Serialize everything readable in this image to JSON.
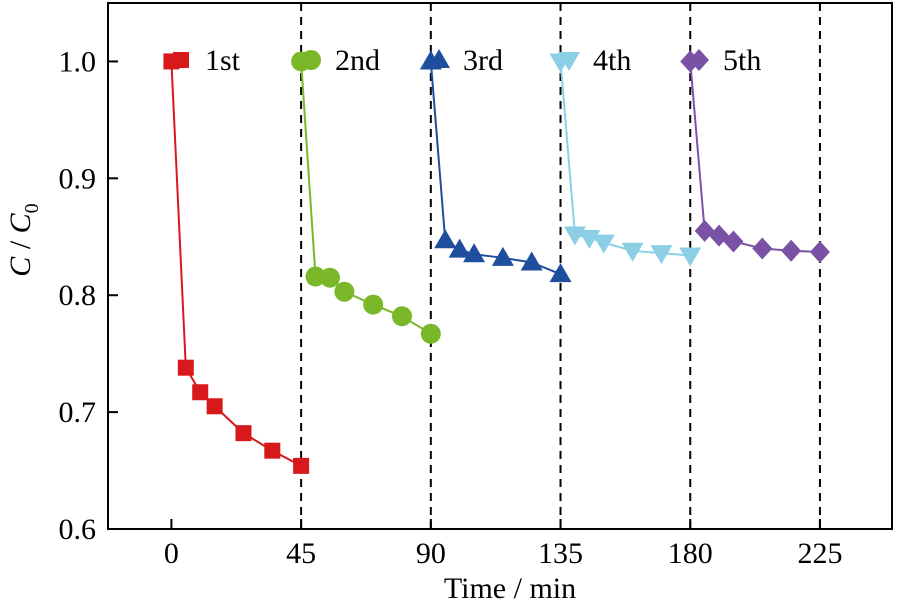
{
  "chart_data": {
    "type": "line",
    "xlabel": "Time / min",
    "ylabel_main": "C",
    "ylabel_sep": " / ",
    "ylabel_denom": "C",
    "ylabel_sub": "0",
    "xlim": [
      -22,
      250
    ],
    "ylim": [
      0.6,
      1.05
    ],
    "xticks": [
      0,
      45,
      90,
      135,
      180,
      225
    ],
    "yticks": [
      0.6,
      0.7,
      0.8,
      0.9,
      1.0
    ],
    "ytick_labels": [
      "0.6",
      "0.7",
      "0.8",
      "0.9",
      "1.0"
    ],
    "vlines": [
      45,
      90,
      135,
      180,
      225
    ],
    "legend_position": "top, inside plot, horizontal",
    "series": [
      {
        "name": "1st",
        "color": "#d7191c",
        "marker": "square",
        "x": [
          0,
          5,
          10,
          15,
          25,
          35,
          45
        ],
        "y": [
          1.0,
          0.738,
          0.717,
          0.705,
          0.682,
          0.667,
          0.654
        ]
      },
      {
        "name": "2nd",
        "color": "#7ab829",
        "marker": "circle",
        "x": [
          45,
          50,
          55,
          60,
          70,
          80,
          90
        ],
        "y": [
          1.0,
          0.816,
          0.815,
          0.803,
          0.792,
          0.782,
          0.767
        ]
      },
      {
        "name": "3rd",
        "color": "#1f4e9e",
        "marker": "triangle-up",
        "x": [
          90,
          95,
          100,
          105,
          115,
          125,
          135
        ],
        "y": [
          1.0,
          0.847,
          0.839,
          0.835,
          0.832,
          0.828,
          0.818
        ]
      },
      {
        "name": "4th",
        "color": "#8ccfe5",
        "marker": "triangle-down",
        "x": [
          135,
          140,
          145,
          150,
          160,
          170,
          180
        ],
        "y": [
          1.0,
          0.852,
          0.849,
          0.845,
          0.838,
          0.836,
          0.834
        ]
      },
      {
        "name": "5th",
        "color": "#7a52a5",
        "marker": "diamond",
        "x": [
          180,
          185,
          190,
          195,
          205,
          215,
          225
        ],
        "y": [
          1.0,
          0.855,
          0.851,
          0.846,
          0.84,
          0.838,
          0.837
        ]
      }
    ]
  }
}
